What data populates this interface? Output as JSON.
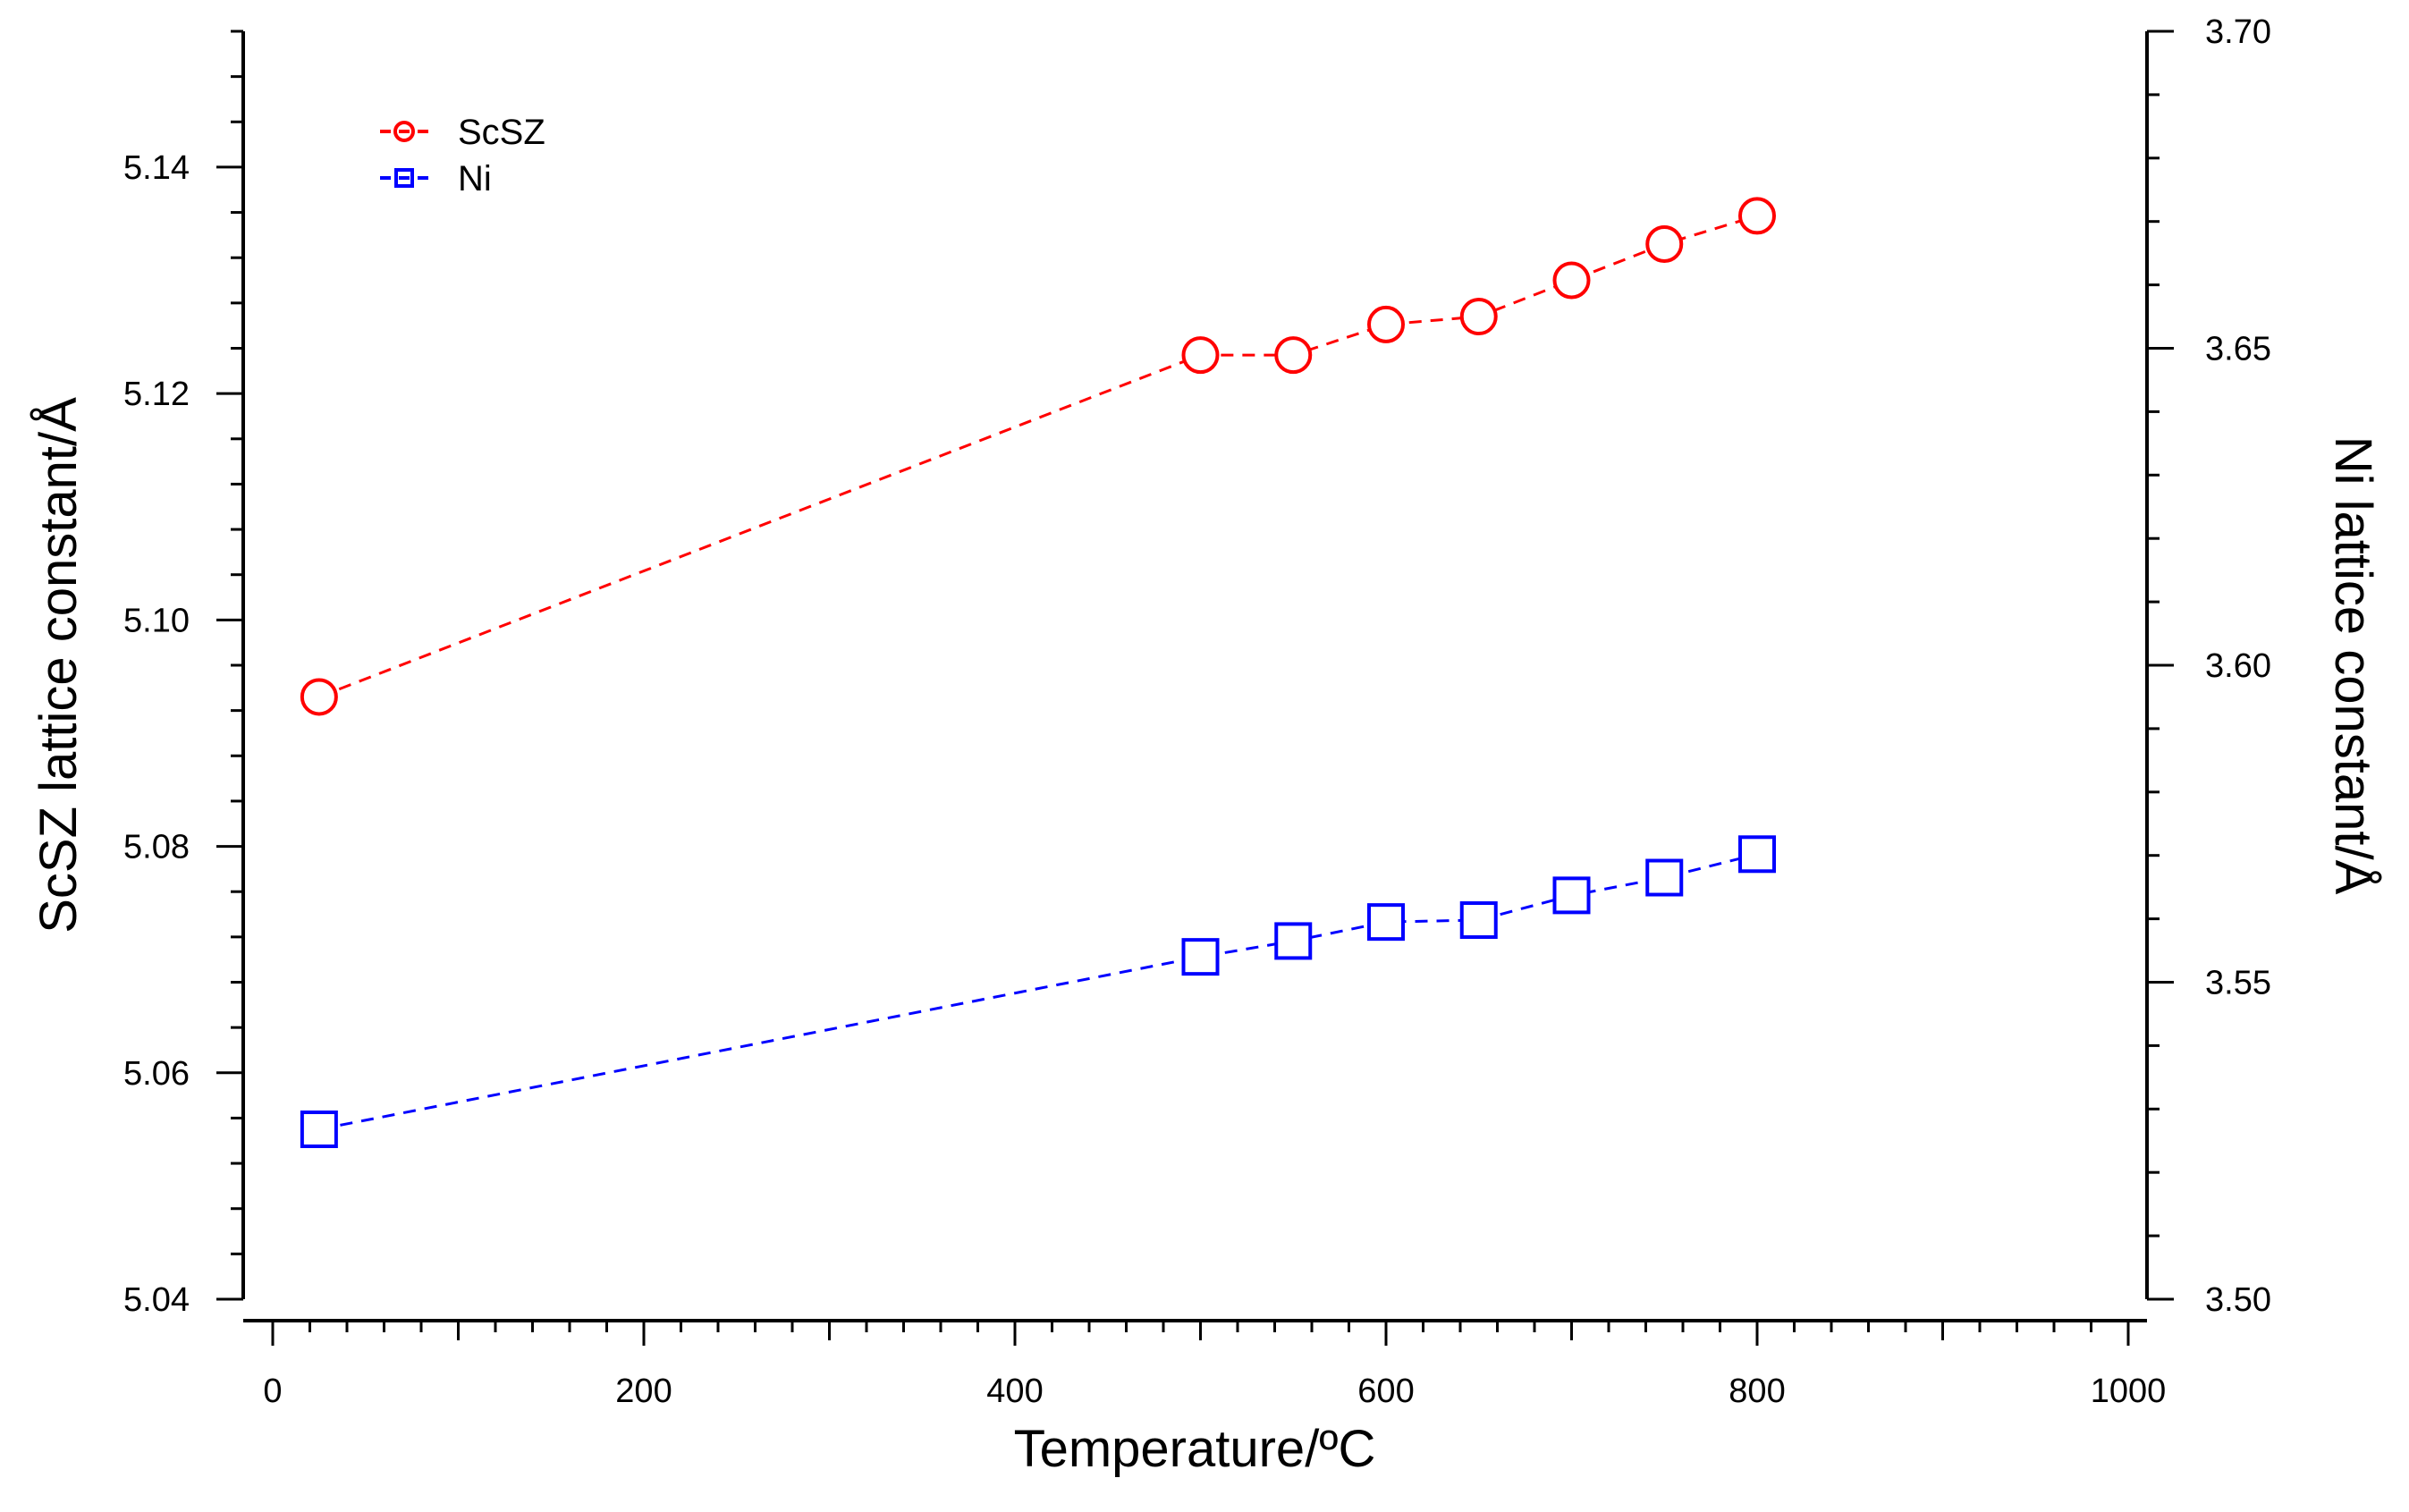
{
  "chart_data": {
    "type": "scatter",
    "title": "",
    "xlabel": "Temperature/ºC",
    "ylabel": "ScSZ lattice constant/Å",
    "y2label": "Ni lattice constant/Å",
    "xlim": [
      -30,
      1000
    ],
    "ylim": [
      5.04,
      5.152
    ],
    "y2lim": [
      3.5,
      3.7
    ],
    "x_ticks": [
      "0",
      "200",
      "400",
      "600",
      "800",
      "1000"
    ],
    "y_ticks": [
      "5.04",
      "5.06",
      "5.08",
      "5.10",
      "5.12",
      "5.14"
    ],
    "y2_ticks": [
      "3.50",
      "3.55",
      "3.60",
      "3.65",
      "3.70"
    ],
    "grid": false,
    "legend_position": "top-left",
    "series": [
      {
        "name": "ScSZ",
        "axis": "left",
        "color": "#ff0000",
        "marker": "circle",
        "line": "dashed",
        "x": [
          25,
          500,
          550,
          600,
          650,
          700,
          750,
          800
        ],
        "y": [
          5.0932,
          5.1234,
          5.1234,
          5.1261,
          5.1268,
          5.13,
          5.1332,
          5.1357
        ]
      },
      {
        "name": "Ni",
        "axis": "right",
        "color": "#0000ff",
        "marker": "square",
        "line": "dashed",
        "x": [
          25,
          500,
          550,
          600,
          650,
          700,
          750,
          800
        ],
        "y": [
          3.5268,
          3.554,
          3.5565,
          3.5595,
          3.5598,
          3.5637,
          3.5665,
          3.5702
        ]
      }
    ]
  }
}
